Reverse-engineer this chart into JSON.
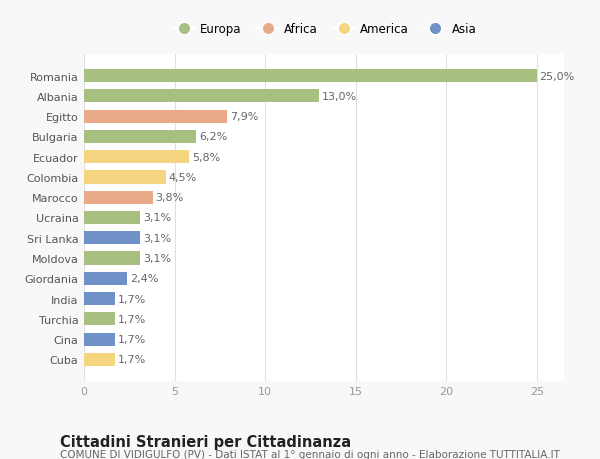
{
  "categories": [
    "Cuba",
    "Cina",
    "Turchia",
    "India",
    "Giordania",
    "Moldova",
    "Sri Lanka",
    "Ucraina",
    "Marocco",
    "Colombia",
    "Ecuador",
    "Bulgaria",
    "Egitto",
    "Albania",
    "Romania"
  ],
  "values": [
    1.7,
    1.7,
    1.7,
    1.7,
    2.4,
    3.1,
    3.1,
    3.1,
    3.8,
    4.5,
    5.8,
    6.2,
    7.9,
    13.0,
    25.0
  ],
  "colors": [
    "#f5d580",
    "#7090c8",
    "#a8bf82",
    "#7090c8",
    "#7090c8",
    "#a8bf82",
    "#7090c8",
    "#a8bf82",
    "#e8aa88",
    "#f5d580",
    "#f5d580",
    "#a8bf82",
    "#e8aa88",
    "#a8bf82",
    "#a8bf82"
  ],
  "legend_labels": [
    "Europa",
    "Africa",
    "America",
    "Asia"
  ],
  "legend_colors": [
    "#a8bf82",
    "#e8aa88",
    "#f5d580",
    "#7090c8"
  ],
  "title": "Cittadini Stranieri per Cittadinanza",
  "subtitle": "COMUNE DI VIDIGULFO (PV) - Dati ISTAT al 1° gennaio di ogni anno - Elaborazione TUTTITALIA.IT",
  "xlim": [
    0,
    26.5
  ],
  "xticks": [
    0,
    5,
    10,
    15,
    20,
    25
  ],
  "bg_color": "#f8f8f8",
  "plot_bg_color": "#ffffff",
  "grid_color": "#e0e0e0",
  "bar_height": 0.65,
  "label_fontsize": 8,
  "tick_fontsize": 8,
  "title_fontsize": 10.5,
  "subtitle_fontsize": 7.5
}
